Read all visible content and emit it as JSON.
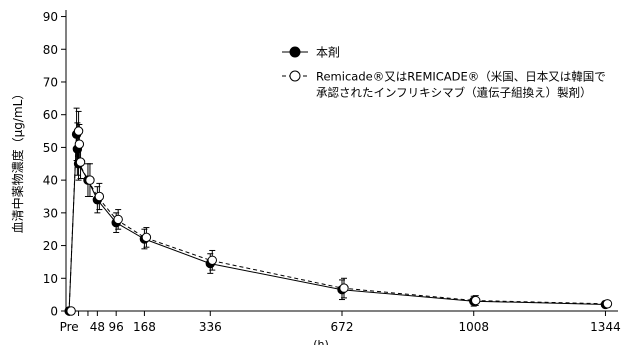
{
  "chart_data": {
    "type": "line",
    "ylabel": "血清中薬物濃度（μg/mL）",
    "xlabel": "(h)",
    "ylim": [
      0,
      92
    ],
    "yticks": [
      0,
      10,
      20,
      30,
      40,
      50,
      60,
      70,
      80,
      90
    ],
    "xticks": [
      {
        "label": "Pre",
        "value": -24
      },
      {
        "label": "48",
        "value": 48
      },
      {
        "label": "96",
        "value": 96
      },
      {
        "label": "168",
        "value": 168
      },
      {
        "label": "336",
        "value": 336
      },
      {
        "label": "672",
        "value": 672
      },
      {
        "label": "1008",
        "value": 1008
      },
      {
        "label": "1344",
        "value": 1344
      }
    ],
    "legend_position": "top-right",
    "series": [
      {
        "name": "本剤",
        "marker": "filled-circle",
        "line": "solid",
        "color": "#000000",
        "points": [
          {
            "x": -24,
            "y": 0,
            "err": 0
          },
          {
            "x": -5,
            "y": 54,
            "err": 8
          },
          {
            "x": -3,
            "y": 49.5,
            "err": 8
          },
          {
            "x": 0,
            "y": 45,
            "err": 5
          },
          {
            "x": 24,
            "y": 40,
            "err": 5
          },
          {
            "x": 48,
            "y": 34,
            "err": 4
          },
          {
            "x": 96,
            "y": 27,
            "err": 3
          },
          {
            "x": 168,
            "y": 22,
            "err": 3
          },
          {
            "x": 336,
            "y": 14.5,
            "err": 3
          },
          {
            "x": 672,
            "y": 6.5,
            "err": 3
          },
          {
            "x": 1008,
            "y": 3,
            "err": 1.5
          },
          {
            "x": 1344,
            "y": 2,
            "err": 1
          }
        ]
      },
      {
        "name": "Remicade®又はREMICADE®（米国、日本又は韓国で承認されたインフリキシマブ（遺伝子組換え）製剤）",
        "name_lines": [
          "Remicade®又はREMICADE®（米国、日本又は韓国で",
          "承認されたインフリキシマブ（遺伝子組換え）製剤）"
        ],
        "marker": "open-circle",
        "line": "dashed",
        "color": "#000000",
        "points": [
          {
            "x": -24,
            "y": 0,
            "err": 0
          },
          {
            "x": -5,
            "y": 55,
            "err": 6
          },
          {
            "x": -3,
            "y": 51,
            "err": 6
          },
          {
            "x": 0,
            "y": 45.5,
            "err": 5
          },
          {
            "x": 24,
            "y": 40,
            "err": 5
          },
          {
            "x": 48,
            "y": 35,
            "err": 4
          },
          {
            "x": 96,
            "y": 28,
            "err": 3
          },
          {
            "x": 168,
            "y": 22.5,
            "err": 3
          },
          {
            "x": 336,
            "y": 15.5,
            "err": 3
          },
          {
            "x": 672,
            "y": 7,
            "err": 3
          },
          {
            "x": 1008,
            "y": 3.2,
            "err": 1.5
          },
          {
            "x": 1344,
            "y": 2.2,
            "err": 1
          }
        ]
      }
    ]
  }
}
